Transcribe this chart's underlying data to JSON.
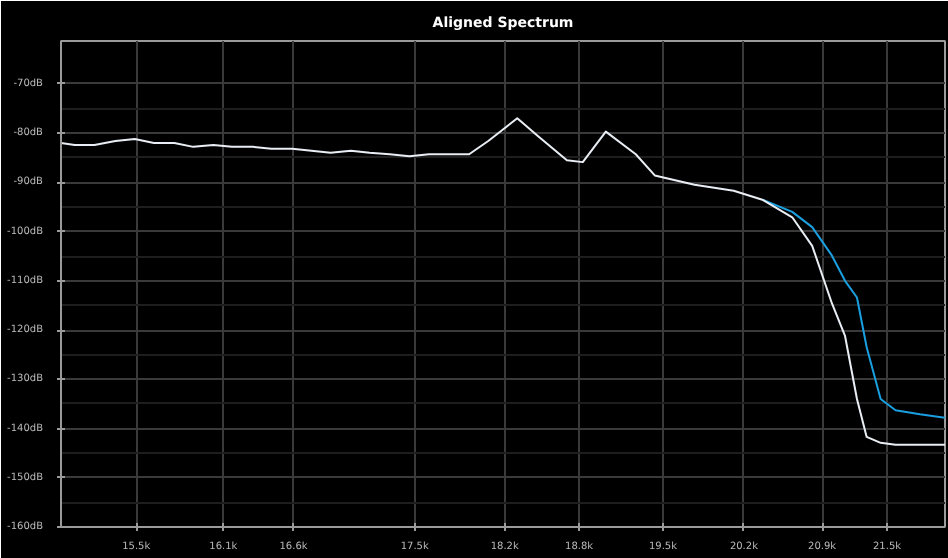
{
  "chart_data": {
    "type": "line",
    "title": "Aligned Spectrum",
    "log": "x",
    "grid": true,
    "marker": "none",
    "line_style": "solid",
    "xlim": [
      15000,
      22050
    ],
    "ylim": [
      -160,
      -61.3
    ],
    "xticks": [
      {
        "value": 15500,
        "label": "15.5k"
      },
      {
        "value": 16100,
        "label": "16.1k"
      },
      {
        "value": 16600,
        "label": "16.6k"
      },
      {
        "value": 17500,
        "label": "17.5k"
      },
      {
        "value": 18200,
        "label": "18.2k"
      },
      {
        "value": 18800,
        "label": "18.8k"
      },
      {
        "value": 19500,
        "label": "19.5k"
      },
      {
        "value": 20200,
        "label": "20.2k"
      },
      {
        "value": 20900,
        "label": "20.9k"
      },
      {
        "value": 21500,
        "label": "21.5k"
      }
    ],
    "yticks": [
      {
        "value": -70,
        "label": "-70dB"
      },
      {
        "value": -80,
        "label": "-80dB"
      },
      {
        "value": -90,
        "label": "-90dB"
      },
      {
        "value": -100,
        "label": "-100dB"
      },
      {
        "value": -110,
        "label": "-110dB"
      },
      {
        "value": -120,
        "label": "-120dB"
      },
      {
        "value": -130,
        "label": "-130dB"
      },
      {
        "value": -140,
        "label": "-140dB"
      },
      {
        "value": -150,
        "label": "-150dB"
      },
      {
        "value": -160,
        "label": "-160dB"
      }
    ],
    "series": [
      {
        "color": "#1a9fe0",
        "x": [
          20370,
          20630,
          20810,
          20990,
          21110,
          21220,
          21310,
          21440,
          21580,
          21810,
          22050
        ],
        "values": [
          -93.6,
          -96.0,
          -99.1,
          -104.9,
          -110.0,
          -113.4,
          -123.5,
          -134.0,
          -136.3,
          -137.1,
          -137.8
        ]
      },
      {
        "color": "#e8eef4",
        "x": [
          15000,
          15090,
          15220,
          15360,
          15490,
          15620,
          15760,
          15890,
          16030,
          16160,
          16310,
          16440,
          16590,
          16730,
          16870,
          17020,
          17160,
          17310,
          17460,
          17610,
          17760,
          17920,
          18070,
          18300,
          18460,
          18700,
          18830,
          19020,
          19270,
          19430,
          19770,
          20110,
          20370,
          20630,
          20810,
          20990,
          21110,
          21220,
          21310,
          21440,
          21580,
          21810,
          22050
        ],
        "values": [
          -82.0,
          -82.4,
          -82.4,
          -81.6,
          -81.2,
          -82.0,
          -82.0,
          -82.8,
          -82.4,
          -82.8,
          -82.8,
          -83.2,
          -83.2,
          -83.6,
          -84.0,
          -83.6,
          -84.0,
          -84.3,
          -84.7,
          -84.3,
          -84.3,
          -84.3,
          -81.6,
          -77.0,
          -80.5,
          -85.5,
          -85.9,
          -79.7,
          -84.3,
          -88.6,
          -90.5,
          -91.7,
          -93.6,
          -97.1,
          -102.9,
          -114.6,
          -121.2,
          -134.0,
          -141.7,
          -142.9,
          -143.3,
          -143.3,
          -143.3
        ]
      }
    ]
  }
}
